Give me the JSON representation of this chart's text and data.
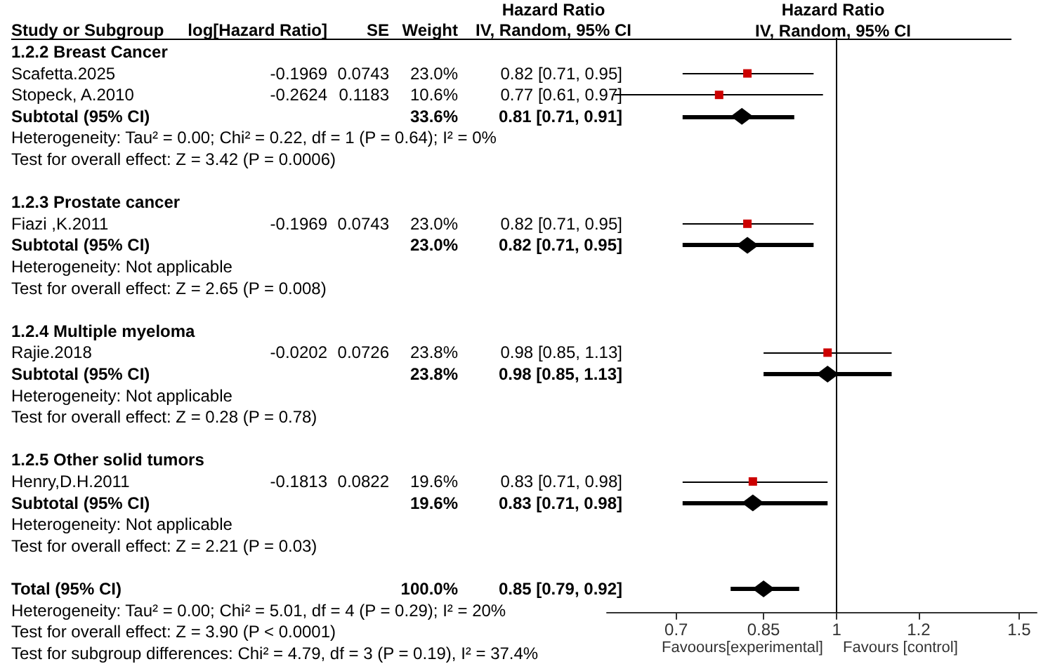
{
  "chart_data": {
    "type": "scatter",
    "orientation": "horizontal",
    "title": "Hazard Ratio",
    "subtitle": "IV, Random, 95% CI",
    "log": "x",
    "xlim": [
      0.6,
      1.56
    ],
    "xticks": [
      0.7,
      0.85,
      1,
      1.2,
      1.5
    ],
    "categories": [
      "Study or Subgroup",
      "1.2.2 Breast Cancer",
      "Scafetta.2025",
      "Stopeck, A.2010",
      "Subtotal (95% CI)",
      "Heterogeneity: Tau² = 0.00; Chi² = 0.22, df = 1 (P = 0.64); I² = 0%",
      "Test for overall effect: Z = 3.42 (P = 0.0006)",
      null,
      "1.2.3 Prostate cancer",
      "Fiazi ,K.2011",
      "Subtotal (95% CI)",
      "Heterogeneity: Not applicable",
      "Test for overall effect: Z = 2.65 (P = 0.008)",
      null,
      "1.2.4 Multiple myeloma",
      "Rajie.2018",
      "Subtotal (95% CI)",
      "Heterogeneity: Not applicable",
      "Test for overall effect: Z = 0.28 (P = 0.78)",
      null,
      "1.2.5 Other solid tumors",
      "Henry,D.H.2011",
      "Subtotal (95% CI)",
      "Heterogeneity: Not applicable",
      "Test for overall effect: Z = 2.21 (P = 0.03)",
      null,
      "Total (95% CI)",
      "Heterogeneity: Tau² = 0.00; Chi² = 5.01, df = 4 (P = 0.29); I² = 20%",
      "Test for overall effect: Z = 3.90 (P < 0.0001)",
      "Test for subgroup differences: Chi² = 4.79, df = 3 (P = 0.19), I² = 37.4%"
    ],
    "series": [
      {
        "marker": "square",
        "color": "#cc0000",
        "values": [
          null,
          null,
          0.82,
          0.77,
          null,
          null,
          null,
          null,
          null,
          0.82,
          null,
          null,
          null,
          null,
          null,
          0.98,
          null,
          null,
          null,
          null,
          null,
          0.83,
          null,
          null,
          null,
          null,
          null,
          null,
          null,
          null
        ],
        "errors": [
          null,
          null,
          [
            0.71,
            0.95
          ],
          [
            0.61,
            0.97
          ],
          null,
          null,
          null,
          null,
          null,
          [
            0.71,
            0.95
          ],
          null,
          null,
          null,
          null,
          null,
          [
            0.85,
            1.13
          ],
          null,
          null,
          null,
          null,
          null,
          [
            0.71,
            0.98
          ],
          null,
          null,
          null,
          null,
          null,
          null,
          null,
          null
        ]
      },
      {
        "marker": "diamond",
        "color": "#000000",
        "values": [
          null,
          null,
          null,
          null,
          0.81,
          null,
          null,
          null,
          null,
          null,
          0.82,
          null,
          null,
          null,
          null,
          null,
          0.98,
          null,
          null,
          null,
          null,
          null,
          0.83,
          null,
          null,
          null,
          0.85,
          null,
          null,
          null
        ],
        "errors": [
          null,
          null,
          null,
          null,
          [
            0.71,
            0.91
          ],
          null,
          null,
          null,
          null,
          null,
          [
            0.71,
            0.95
          ],
          null,
          null,
          null,
          null,
          null,
          [
            0.85,
            1.13
          ],
          null,
          null,
          null,
          null,
          null,
          [
            0.71,
            0.98
          ],
          null,
          null,
          null,
          [
            0.79,
            0.92
          ],
          null,
          null,
          null
        ]
      }
    ],
    "ref_lines": [
      {
        "axis": "x",
        "value": 1,
        "color": "#000000"
      }
    ],
    "annotations": [
      "Hazard Ratio",
      "Favoours[experimental]",
      "Favours [control]",
      "log[Hazard Ratio]",
      "SE",
      "Weight",
      "IV, Random, 95% CI",
      "-0.1969",
      "0.0743",
      "23.0%",
      "0.82 [0.71, 0.95]",
      "-0.2624",
      "0.1183",
      "10.6%",
      "0.77 [0.61, 0.97]",
      "33.6%",
      "0.81 [0.71, 0.91]",
      "-0.1969",
      "0.0743",
      "23.0%",
      "0.82 [0.71, 0.95]",
      "23.0%",
      "0.82 [0.71, 0.95]",
      "-0.0202",
      "0.0726",
      "23.8%",
      "0.98 [0.85, 1.13]",
      "23.8%",
      "0.98 [0.85, 1.13]",
      "-0.1813",
      "0.0822",
      "19.6%",
      "0.83 [0.71, 0.98]",
      "19.6%",
      "0.83 [0.71, 0.98]",
      "100.0%",
      "0.85 [0.79, 0.92]"
    ]
  }
}
